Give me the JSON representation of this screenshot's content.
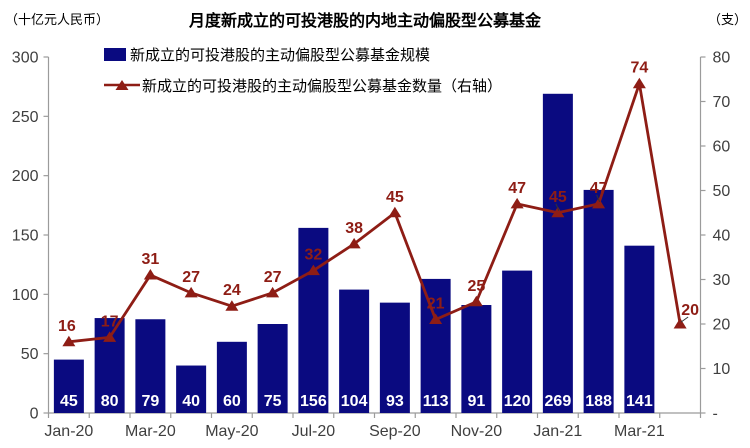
{
  "chart": {
    "title": "月度新成立的可投港股的内地主动偏股型公募基金",
    "left_axis_unit": "（十亿元人民币）",
    "right_axis_unit": "（支）"
  },
  "chart_data": {
    "type": "combo (bar + line, dual axis)",
    "title": "月度新成立的可投港股的内地主动偏股型公募基金",
    "categories": [
      "Jan-20",
      "Feb-20",
      "Mar-20",
      "Apr-20",
      "May-20",
      "Jun-20",
      "Jul-20",
      "Aug-20",
      "Sep-20",
      "Oct-20",
      "Nov-20",
      "Dec-20",
      "Jan-21",
      "Feb-21",
      "Mar-21",
      "Apr-21"
    ],
    "x_axis_tick_labels": [
      "Jan-20",
      "Mar-20",
      "May-20",
      "Jul-20",
      "Sep-20",
      "Nov-20",
      "Jan-21",
      "Mar-21"
    ],
    "series": [
      {
        "name": "新成立的可投港股的主动偏股型公募基金规模",
        "type": "bar",
        "axis": "left",
        "color": "#0A0A80",
        "label_color": "#FFFFFF",
        "values": [
          45,
          80,
          79,
          40,
          60,
          75,
          156,
          104,
          93,
          113,
          91,
          120,
          269,
          188,
          141,
          null
        ]
      },
      {
        "name": "新成立的可投港股的主动偏股型公募基金数量（右轴）",
        "type": "line",
        "axis": "right",
        "color": "#8E1D15",
        "label_color": "#8E1D15",
        "values": [
          16,
          17,
          31,
          27,
          24,
          27,
          32,
          38,
          45,
          21,
          25,
          47,
          45,
          47,
          74,
          20
        ]
      }
    ],
    "left_axis": {
      "unit": "（十亿元人民币）",
      "min": 0,
      "max": 300,
      "step": 50,
      "tick_labels": [
        "300",
        "250",
        "200",
        "150",
        "100",
        "50",
        "0"
      ]
    },
    "right_axis": {
      "unit": "（支）",
      "min": 0,
      "max": 80,
      "step": 10,
      "tick_labels": [
        "80",
        "70",
        "60",
        "50",
        "40",
        "30",
        "20",
        "10",
        "-"
      ]
    },
    "grid": "none",
    "legend_position": "top-left"
  }
}
